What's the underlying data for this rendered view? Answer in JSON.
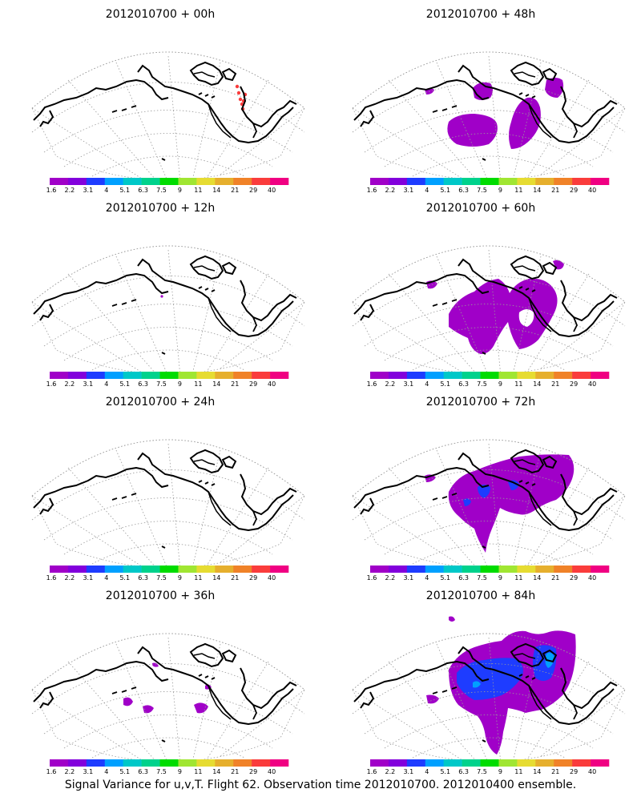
{
  "footer": "Signal Variance for u,v,T. Flight 62. Observation time 2012010700. 2012010400 ensemble.",
  "legend": {
    "labels": [
      "1.6",
      "2.2",
      "3.1",
      "4",
      "5.1",
      "6.3",
      "7.5",
      "9",
      "11",
      "14",
      "21",
      "29",
      "40"
    ],
    "colors": [
      "#a000c8",
      "#8200dc",
      "#1e3cff",
      "#00a0ff",
      "#00c8c8",
      "#00d28c",
      "#00dc00",
      "#a0e632",
      "#e6dc32",
      "#e6af2d",
      "#f08228",
      "#fa3c3c",
      "#f00082"
    ]
  },
  "panels": [
    {
      "title": "2012010700 + 00h",
      "forecast_hour": 0,
      "blobs": [
        {
          "shape": "small-dots",
          "level": 12
        }
      ]
    },
    {
      "title": "2012010700 + 48h",
      "forecast_hour": 48,
      "blobs": [
        {
          "shape": "west-pacific-patch",
          "level": 1
        },
        {
          "shape": "gulf-of-alaska-patch",
          "level": 1
        },
        {
          "shape": "north-patch",
          "level": 1
        }
      ]
    },
    {
      "title": "2012010700 + 12h",
      "forecast_hour": 12,
      "blobs": [
        {
          "shape": "tiny-dot",
          "level": 1
        }
      ]
    },
    {
      "title": "2012010700 + 60h",
      "forecast_hour": 60,
      "blobs": [
        {
          "shape": "large-patch-with-hole",
          "level": 1
        }
      ]
    },
    {
      "title": "2012010700 + 24h",
      "forecast_hour": 24,
      "blobs": []
    },
    {
      "title": "2012010700 + 72h",
      "forecast_hour": 72,
      "blobs": [
        {
          "shape": "large-patch",
          "level": 1
        },
        {
          "shape": "inner-blue-spots",
          "level": 3
        }
      ]
    },
    {
      "title": "2012010700 + 36h",
      "forecast_hour": 36,
      "blobs": [
        {
          "shape": "scattered-small-patches",
          "level": 1
        }
      ]
    },
    {
      "title": "2012010700 + 84h",
      "forecast_hour": 84,
      "blobs": [
        {
          "shape": "very-large-patch",
          "level": 1
        },
        {
          "shape": "inner-blue-region",
          "level": 3
        },
        {
          "shape": "inner-cyan-spots",
          "level": 4
        }
      ]
    }
  ]
}
